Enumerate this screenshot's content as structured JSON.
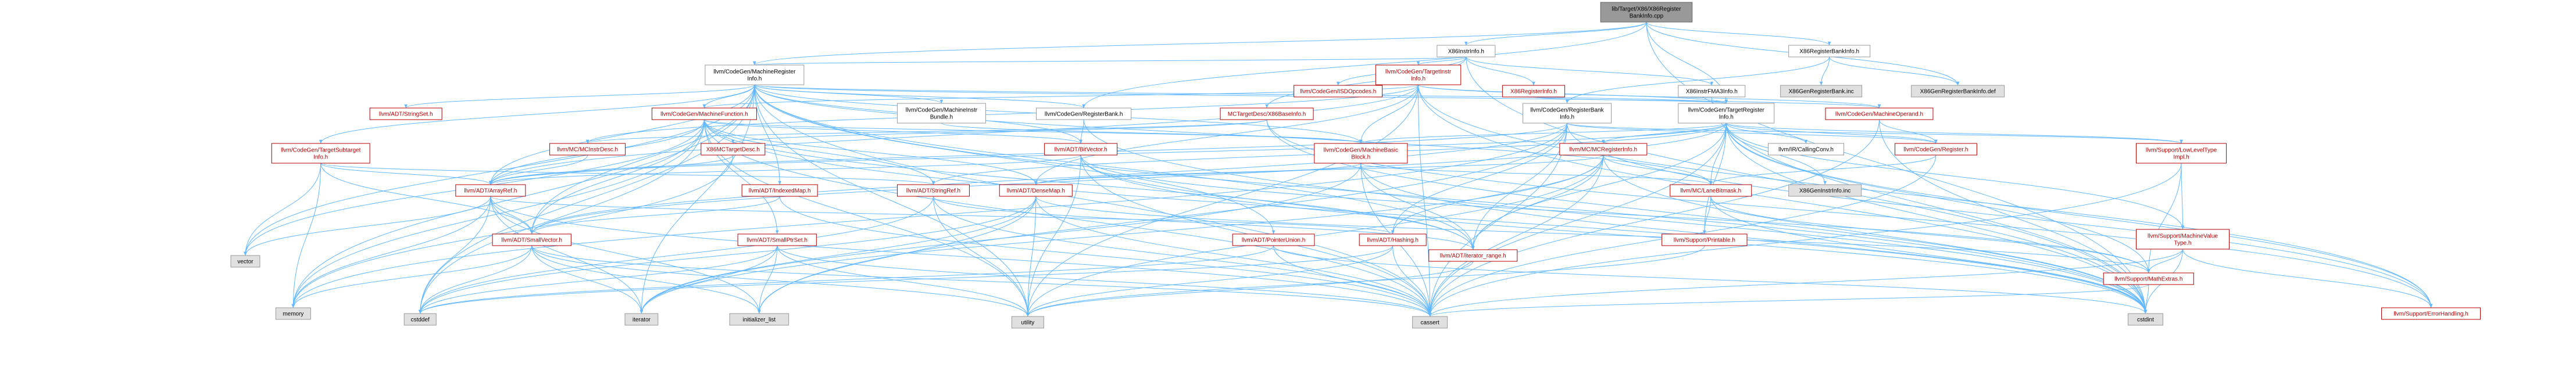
{
  "diagram": {
    "title": "lib/Target/X86/X86RegisterBankInfo.cpp",
    "colors": {
      "root_fill": "#999999",
      "root_border": "#666666",
      "linked_text": "#b20000",
      "plain_text": "#000000",
      "node_border": "#b20000",
      "node_border_plain": "#999999",
      "system_fill": "#e0e0e0",
      "edge": "#63b8ff"
    },
    "nodes": [
      {
        "id": "root",
        "kind": "root",
        "lines": [
          "lib/Target/X86/X86Register",
          "BankInfo.cpp"
        ]
      },
      {
        "id": "x86instrinfo",
        "kind": "plain",
        "lines": [
          "X86InstrInfo.h"
        ]
      },
      {
        "id": "x86regbankinfo_h",
        "kind": "plain",
        "lines": [
          "X86RegisterBankInfo.h"
        ]
      },
      {
        "id": "mcregisterinfo_h",
        "kind": "plain",
        "lines": [
          "llvm/CodeGen/MachineRegister",
          "Info.h"
        ]
      },
      {
        "id": "isdopcodes",
        "kind": "linked",
        "lines": [
          "llvm/CodeGen/ISDOpcodes.h"
        ]
      },
      {
        "id": "targetinstrinfo",
        "kind": "linked",
        "lines": [
          "llvm/CodeGen/TargetInstr",
          "Info.h"
        ]
      },
      {
        "id": "x86reginfo",
        "kind": "linked",
        "lines": [
          "X86RegisterInfo.h"
        ]
      },
      {
        "id": "x86instrfma3",
        "kind": "plain",
        "lines": [
          "X86InstrFMA3Info.h"
        ]
      },
      {
        "id": "x86genregbank_inc",
        "kind": "system",
        "lines": [
          "X86GenRegisterBank.inc"
        ]
      },
      {
        "id": "x86genregbankinfo_def",
        "kind": "system",
        "lines": [
          "X86GenRegisterBankInfo.def"
        ]
      },
      {
        "id": "stringset",
        "kind": "linked",
        "lines": [
          "llvm/ADT/StringSet.h"
        ]
      },
      {
        "id": "machinefunction",
        "kind": "linked",
        "lines": [
          "llvm/CodeGen/MachineFunction.h"
        ]
      },
      {
        "id": "machineinstrbundle",
        "kind": "plain",
        "lines": [
          "llvm/CodeGen/MachineInstr",
          "Bundle.h"
        ]
      },
      {
        "id": "registerbank",
        "kind": "plain",
        "lines": [
          "llvm/CodeGen/RegisterBank.h"
        ]
      },
      {
        "id": "x86baseinfo",
        "kind": "linked",
        "lines": [
          "MCTargetDesc/X86BaseInfo.h"
        ]
      },
      {
        "id": "registerbankinfo",
        "kind": "plain",
        "lines": [
          "llvm/CodeGen/RegisterBank",
          "Info.h"
        ]
      },
      {
        "id": "targetregisterinfo",
        "kind": "plain",
        "lines": [
          "llvm/CodeGen/TargetRegister",
          "Info.h"
        ]
      },
      {
        "id": "machineoperand",
        "kind": "linked",
        "lines": [
          "llvm/CodeGen/MachineOperand.h"
        ]
      },
      {
        "id": "targetsubtarget",
        "kind": "linked",
        "lines": [
          "llvm/CodeGen/TargetSubtarget",
          "Info.h"
        ]
      },
      {
        "id": "x86mctargetdesc",
        "kind": "linked",
        "lines": [
          "X86MCTargetDesc.h"
        ]
      },
      {
        "id": "mcinstrdesc",
        "kind": "linked",
        "lines": [
          "llvm/MC/MCInstrDesc.h"
        ]
      },
      {
        "id": "bitvector",
        "kind": "linked",
        "lines": [
          "llvm/ADT/BitVector.h"
        ]
      },
      {
        "id": "machinebasicblock",
        "kind": "linked",
        "lines": [
          "llvm/CodeGen/MachineBasic",
          "Block.h"
        ]
      },
      {
        "id": "callingconv",
        "kind": "plain",
        "lines": [
          "llvm/IR/CallingConv.h"
        ]
      },
      {
        "id": "register_h",
        "kind": "linked",
        "lines": [
          "llvm/CodeGen/Register.h"
        ]
      },
      {
        "id": "mcmcregisterinfo",
        "kind": "linked",
        "lines": [
          "llvm/MC/MCRegisterInfo.h"
        ]
      },
      {
        "id": "lowleveltype",
        "kind": "linked",
        "lines": [
          "llvm/Support/LowLevelType",
          "Impl.h"
        ]
      },
      {
        "id": "arrayref",
        "kind": "linked",
        "lines": [
          "llvm/ADT/ArrayRef.h"
        ]
      },
      {
        "id": "indexedmap",
        "kind": "linked",
        "lines": [
          "llvm/ADT/IndexedMap.h"
        ]
      },
      {
        "id": "stringref",
        "kind": "linked",
        "lines": [
          "llvm/ADT/StringRef.h"
        ]
      },
      {
        "id": "densemap",
        "kind": "linked",
        "lines": [
          "llvm/ADT/DenseMap.h"
        ]
      },
      {
        "id": "mclanebitmask",
        "kind": "linked",
        "lines": [
          "llvm/MC/LaneBitmask.h"
        ]
      },
      {
        "id": "x86geninstrinfo_inc",
        "kind": "system",
        "lines": [
          "X86GenInstrInfo.inc"
        ]
      },
      {
        "id": "machinevaluetype",
        "kind": "linked",
        "lines": [
          "llvm/Support/MachineValue",
          "Type.h"
        ]
      },
      {
        "id": "smallvector",
        "kind": "linked",
        "lines": [
          "llvm/ADT/SmallVector.h"
        ]
      },
      {
        "id": "smallptrset",
        "kind": "linked",
        "lines": [
          "llvm/ADT/SmallPtrSet.h"
        ]
      },
      {
        "id": "pointerunion",
        "kind": "linked",
        "lines": [
          "llvm/ADT/PointerUnion.h"
        ]
      },
      {
        "id": "hashing",
        "kind": "linked",
        "lines": [
          "llvm/ADT/Hashing.h"
        ]
      },
      {
        "id": "iterator_range",
        "kind": "linked",
        "lines": [
          "llvm/ADT/iterator_range.h"
        ]
      },
      {
        "id": "printable",
        "kind": "linked",
        "lines": [
          "llvm/Support/Printable.h"
        ]
      },
      {
        "id": "mathextras",
        "kind": "linked",
        "lines": [
          "llvm/Support/MathExtras.h"
        ]
      },
      {
        "id": "errorhandling",
        "kind": "linked",
        "lines": [
          "llvm/Support/ErrorHandling.h"
        ]
      },
      {
        "id": "vector",
        "kind": "system",
        "lines": [
          "vector"
        ]
      },
      {
        "id": "memory",
        "kind": "system",
        "lines": [
          "memory"
        ]
      },
      {
        "id": "cstddef",
        "kind": "system",
        "lines": [
          "cstddef"
        ]
      },
      {
        "id": "iterator",
        "kind": "system",
        "lines": [
          "iterator"
        ]
      },
      {
        "id": "initializer_list",
        "kind": "system",
        "lines": [
          "initializer_list"
        ]
      },
      {
        "id": "utility",
        "kind": "system",
        "lines": [
          "utility"
        ]
      },
      {
        "id": "cassert",
        "kind": "system",
        "lines": [
          "cassert"
        ]
      },
      {
        "id": "cstdint",
        "kind": "system",
        "lines": [
          "cstdint"
        ]
      }
    ],
    "edges": [
      [
        "root",
        "x86instrinfo"
      ],
      [
        "root",
        "x86regbankinfo_h"
      ],
      [
        "root",
        "mcregisterinfo_h"
      ],
      [
        "root",
        "targetregisterinfo"
      ],
      [
        "root",
        "registerbank"
      ],
      [
        "root",
        "x86genregbankinfo_def"
      ],
      [
        "root",
        "cstdint"
      ],
      [
        "x86regbankinfo_h",
        "x86genregbank_inc"
      ],
      [
        "x86regbankinfo_h",
        "registerbankinfo"
      ],
      [
        "x86regbankinfo_h",
        "x86genregbankinfo_def"
      ],
      [
        "x86instrinfo",
        "isdopcodes"
      ],
      [
        "x86instrinfo",
        "targetinstrinfo"
      ],
      [
        "x86instrinfo",
        "x86reginfo"
      ],
      [
        "x86instrinfo",
        "x86instrfma3"
      ],
      [
        "x86instrinfo",
        "x86baseinfo"
      ],
      [
        "x86instrinfo",
        "mcregisterinfo_h"
      ],
      [
        "x86instrinfo",
        "cstdint"
      ],
      [
        "x86reginfo",
        "targetregisterinfo"
      ],
      [
        "x86instrfma3",
        "cstdint"
      ],
      [
        "mcregisterinfo_h",
        "stringset"
      ],
      [
        "mcregisterinfo_h",
        "machinefunction"
      ],
      [
        "mcregisterinfo_h",
        "machineinstrbundle"
      ],
      [
        "mcregisterinfo_h",
        "registerbank"
      ],
      [
        "mcregisterinfo_h",
        "targetregisterinfo"
      ],
      [
        "mcregisterinfo_h",
        "targetsubtarget"
      ],
      [
        "mcregisterinfo_h",
        "arrayref"
      ],
      [
        "mcregisterinfo_h",
        "bitvector"
      ],
      [
        "mcregisterinfo_h",
        "indexedmap"
      ],
      [
        "mcregisterinfo_h",
        "smallvector"
      ],
      [
        "mcregisterinfo_h",
        "iterator_range"
      ],
      [
        "mcregisterinfo_h",
        "machinebasicblock"
      ],
      [
        "mcregisterinfo_h",
        "mclanebitmask"
      ],
      [
        "mcregisterinfo_h",
        "vector"
      ],
      [
        "mcregisterinfo_h",
        "memory"
      ],
      [
        "mcregisterinfo_h",
        "cstddef"
      ],
      [
        "mcregisterinfo_h",
        "iterator"
      ],
      [
        "mcregisterinfo_h",
        "utility"
      ],
      [
        "mcregisterinfo_h",
        "cassert"
      ],
      [
        "mcregisterinfo_h",
        "cstdint"
      ],
      [
        "mcregisterinfo_h",
        "machineoperand"
      ],
      [
        "mcregisterinfo_h",
        "pointerunion"
      ],
      [
        "targetinstrinfo",
        "machinefunction"
      ],
      [
        "targetinstrinfo",
        "targetregisterinfo"
      ],
      [
        "targetinstrinfo",
        "machinebasicblock"
      ],
      [
        "targetinstrinfo",
        "machineoperand"
      ],
      [
        "targetinstrinfo",
        "mcinstrdesc"
      ],
      [
        "targetinstrinfo",
        "arrayref"
      ],
      [
        "targetinstrinfo",
        "densemap"
      ],
      [
        "targetinstrinfo",
        "cassert"
      ],
      [
        "targetinstrinfo",
        "cstdint"
      ],
      [
        "targetinstrinfo",
        "utility"
      ],
      [
        "targetinstrinfo",
        "errorhandling"
      ],
      [
        "machinefunction",
        "arrayref"
      ],
      [
        "machinefunction",
        "bitvector"
      ],
      [
        "machinefunction",
        "densemap"
      ],
      [
        "machinefunction",
        "smallvector"
      ],
      [
        "machinefunction",
        "smallptrset"
      ],
      [
        "machinefunction",
        "stringref"
      ],
      [
        "machinefunction",
        "machinebasicblock"
      ],
      [
        "machinefunction",
        "iterator_range"
      ],
      [
        "machinefunction",
        "memory"
      ],
      [
        "machinefunction",
        "vector"
      ],
      [
        "machinefunction",
        "utility"
      ],
      [
        "machinefunction",
        "cassert"
      ],
      [
        "machinefunction",
        "cstdint"
      ],
      [
        "machinefunction",
        "cstddef"
      ],
      [
        "machineinstrbundle",
        "machinebasicblock"
      ],
      [
        "registerbank",
        "bitvector"
      ],
      [
        "registerbank",
        "cstdint"
      ],
      [
        "x86baseinfo",
        "x86mctargetdesc"
      ],
      [
        "x86baseinfo",
        "mcinstrdesc"
      ],
      [
        "x86baseinfo",
        "errorhandling"
      ],
      [
        "x86baseinfo",
        "cstdint"
      ],
      [
        "registerbankinfo",
        "arrayref"
      ],
      [
        "registerbankinfo",
        "hashing"
      ],
      [
        "registerbankinfo",
        "smallvector"
      ],
      [
        "registerbankinfo",
        "iterator_range"
      ],
      [
        "registerbankinfo",
        "register_h"
      ],
      [
        "registerbankinfo",
        "lowleveltype"
      ],
      [
        "registerbankinfo",
        "errorhandling"
      ],
      [
        "registerbankinfo",
        "cassert"
      ],
      [
        "registerbankinfo",
        "initializer_list"
      ],
      [
        "registerbankinfo",
        "memory"
      ],
      [
        "targetregisterinfo",
        "arrayref"
      ],
      [
        "targetregisterinfo",
        "smallvector"
      ],
      [
        "targetregisterinfo",
        "stringref"
      ],
      [
        "targetregisterinfo",
        "iterator_range"
      ],
      [
        "targetregisterinfo",
        "machinebasicblock"
      ],
      [
        "targetregisterinfo",
        "callingconv"
      ],
      [
        "targetregisterinfo",
        "mcmcregisterinfo"
      ],
      [
        "targetregisterinfo",
        "mclanebitmask"
      ],
      [
        "targetregisterinfo",
        "lowleveltype"
      ],
      [
        "targetregisterinfo",
        "machinevaluetype"
      ],
      [
        "targetregisterinfo",
        "mathextras"
      ],
      [
        "targetregisterinfo",
        "printable"
      ],
      [
        "targetregisterinfo",
        "cassert"
      ],
      [
        "targetregisterinfo",
        "cstdint"
      ],
      [
        "targetregisterinfo",
        "register_h"
      ],
      [
        "targetregisterinfo",
        "errorhandling"
      ],
      [
        "targetregisterinfo",
        "x86geninstrinfo_inc"
      ],
      [
        "machineoperand",
        "register_h"
      ],
      [
        "machineoperand",
        "cassert"
      ],
      [
        "machineoperand",
        "cstdint"
      ],
      [
        "targetsubtarget",
        "arrayref"
      ],
      [
        "targetsubtarget",
        "smallvector"
      ],
      [
        "targetsubtarget",
        "memory"
      ],
      [
        "targetsubtarget",
        "vector"
      ],
      [
        "targetsubtarget",
        "stringref"
      ],
      [
        "x86mctargetdesc",
        "arrayref"
      ],
      [
        "x86mctargetdesc",
        "memory"
      ],
      [
        "mcinstrdesc",
        "arrayref"
      ],
      [
        "bitvector",
        "arrayref"
      ],
      [
        "bitvector",
        "iterator_range"
      ],
      [
        "bitvector",
        "mathextras"
      ],
      [
        "bitvector",
        "cassert"
      ],
      [
        "bitvector",
        "utility"
      ],
      [
        "bitvector",
        "cstdint"
      ],
      [
        "machinebasicblock",
        "densemap"
      ],
      [
        "machinebasicblock",
        "iterator_range"
      ],
      [
        "machinebasicblock",
        "mclanebitmask"
      ],
      [
        "machinebasicblock",
        "cassert"
      ],
      [
        "machinebasicblock",
        "cstdint"
      ],
      [
        "machinebasicblock",
        "iterator"
      ],
      [
        "register_h",
        "mclanebitmask"
      ],
      [
        "register_h",
        "cassert"
      ],
      [
        "mcmcregisterinfo",
        "mclanebitmask"
      ],
      [
        "mcmcregisterinfo",
        "densemap"
      ],
      [
        "mcmcregisterinfo",
        "iterator_range"
      ],
      [
        "mcmcregisterinfo",
        "hashing"
      ],
      [
        "mcmcregisterinfo",
        "cassert"
      ],
      [
        "mcmcregisterinfo",
        "cstdint"
      ],
      [
        "mcmcregisterinfo",
        "utility"
      ],
      [
        "mcmcregisterinfo",
        "iterator"
      ],
      [
        "lowleveltype",
        "machinevaluetype"
      ],
      [
        "lowleveltype",
        "mathextras"
      ],
      [
        "lowleveltype",
        "cassert"
      ],
      [
        "machinevaluetype",
        "mathextras"
      ],
      [
        "machinevaluetype",
        "errorhandling"
      ],
      [
        "machinevaluetype",
        "cassert"
      ],
      [
        "machinevaluetype",
        "cstdint"
      ],
      [
        "arrayref",
        "smallvector"
      ],
      [
        "arrayref",
        "hashing"
      ],
      [
        "arrayref",
        "cassert"
      ],
      [
        "arrayref",
        "cstddef"
      ],
      [
        "arrayref",
        "iterator"
      ],
      [
        "arrayref",
        "memory"
      ],
      [
        "arrayref",
        "vector"
      ],
      [
        "arrayref",
        "initializer_list"
      ],
      [
        "indexedmap",
        "smallvector"
      ],
      [
        "indexedmap",
        "cassert"
      ],
      [
        "stringref",
        "iterator_range"
      ],
      [
        "stringref",
        "cassert"
      ],
      [
        "stringref",
        "cstddef"
      ],
      [
        "stringref",
        "utility"
      ],
      [
        "densemap",
        "mathextras"
      ],
      [
        "densemap",
        "cassert"
      ],
      [
        "densemap",
        "cstddef"
      ],
      [
        "densemap",
        "iterator"
      ],
      [
        "densemap",
        "initializer_list"
      ],
      [
        "densemap",
        "utility"
      ],
      [
        "mclanebitmask",
        "printable"
      ],
      [
        "mclanebitmask",
        "mathextras"
      ],
      [
        "mclanebitmask",
        "cstdint"
      ],
      [
        "smallvector",
        "cstddef"
      ],
      [
        "smallvector",
        "cassert"
      ],
      [
        "smallvector",
        "iterator"
      ],
      [
        "smallvector",
        "memory"
      ],
      [
        "smallvector",
        "utility"
      ],
      [
        "smallvector",
        "initializer_list"
      ],
      [
        "smallptrset",
        "cassert"
      ],
      [
        "smallptrset",
        "cstddef"
      ],
      [
        "smallptrset",
        "iterator"
      ],
      [
        "smallptrset",
        "initializer_list"
      ],
      [
        "smallptrset",
        "utility"
      ],
      [
        "pointerunion",
        "cassert"
      ],
      [
        "pointerunion",
        "cstddef"
      ],
      [
        "pointerunion",
        "cstdint"
      ],
      [
        "hashing",
        "cassert"
      ],
      [
        "hashing",
        "utility"
      ],
      [
        "hashing",
        "cstddef"
      ],
      [
        "iterator_range",
        "utility"
      ],
      [
        "printable",
        "utility"
      ],
      [
        "mathextras",
        "cassert"
      ],
      [
        "mathextras",
        "cstdint"
      ]
    ]
  }
}
